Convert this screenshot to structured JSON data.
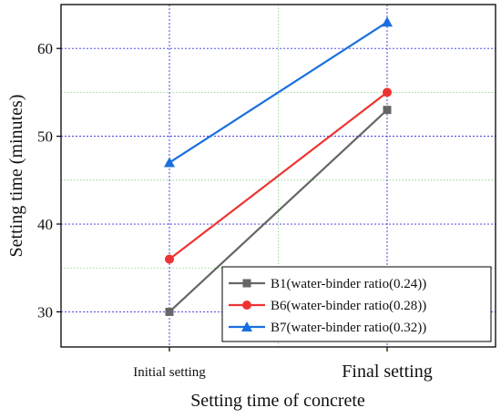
{
  "chart_data": {
    "type": "line",
    "title": "",
    "xlabel": "Setting time of concrete",
    "ylabel": "Setting time (minutes)",
    "categories": [
      "Initial setting",
      "Final setting"
    ],
    "ylim": [
      26,
      65
    ],
    "yticks": [
      30,
      40,
      50,
      60
    ],
    "ytick_labels": [
      "30",
      "40",
      "50",
      "60"
    ],
    "grid": true,
    "legend_position": "bottom-right",
    "series": [
      {
        "name": "B1(water-binder ratio(0.24))",
        "values": [
          30,
          53
        ],
        "color": "#666666",
        "marker": "square"
      },
      {
        "name": "B6(water-binder ratio(0.28))",
        "values": [
          36,
          55
        ],
        "color": "#ee3333",
        "marker": "circle"
      },
      {
        "name": "B7(water-binder ratio(0.32))",
        "values": [
          47,
          63
        ],
        "color": "#1a6fe0",
        "marker": "triangle"
      }
    ]
  }
}
